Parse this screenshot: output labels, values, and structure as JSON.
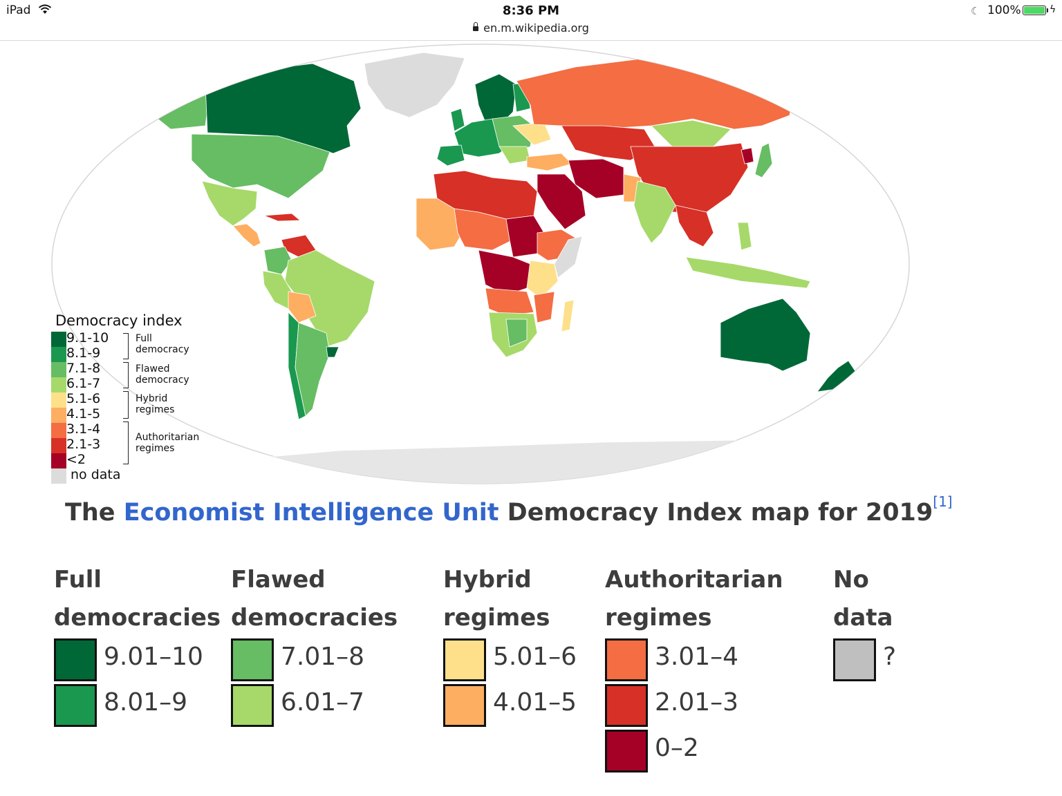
{
  "status_bar": {
    "device": "iPad",
    "time": "8:36 PM",
    "url": "en.m.wikipedia.org",
    "battery": "100%",
    "icons": [
      "wifi-icon",
      "lock-icon",
      "moon-icon",
      "battery-icon",
      "charging-bolt-icon"
    ]
  },
  "map": {
    "legend_title": "Democracy index",
    "legend_rows": [
      {
        "label": "9.1-10",
        "color": "#006837"
      },
      {
        "label": "8.1-9",
        "color": "#1a9850"
      },
      {
        "label": "7.1-8",
        "color": "#66bd63"
      },
      {
        "label": "6.1-7",
        "color": "#a6d96a"
      },
      {
        "label": "5.1-6",
        "color": "#fee08b"
      },
      {
        "label": "4.1-5",
        "color": "#fdae61"
      },
      {
        "label": "3.1-4",
        "color": "#f46d43"
      },
      {
        "label": "2.1-3",
        "color": "#d73027"
      },
      {
        "label": "<2",
        "color": "#a50026"
      },
      {
        "label": "no data",
        "color": "#dcdcdc"
      }
    ],
    "legend_groups": [
      "Full\ndemocracy",
      "Flawed\ndemocracy",
      "Hybrid\nregimes",
      "Authoritarian\nregimes"
    ]
  },
  "caption": {
    "prefix": "The ",
    "link": "Economist Intelligence Unit",
    "suffix": " Democracy Index map for 2019",
    "ref": "[1]"
  },
  "categories": [
    {
      "title": "Full\ndemocracies",
      "items": [
        {
          "range": "9.01–10",
          "color": "#006837"
        },
        {
          "range": "8.01–9",
          "color": "#1a9850"
        }
      ]
    },
    {
      "title": "Flawed\ndemocracies",
      "items": [
        {
          "range": "7.01–8",
          "color": "#66bd63"
        },
        {
          "range": "6.01–7",
          "color": "#a6d96a"
        }
      ]
    },
    {
      "title": "Hybrid\nregimes",
      "items": [
        {
          "range": "5.01–6",
          "color": "#fee08b"
        },
        {
          "range": "4.01–5",
          "color": "#fdae61"
        }
      ]
    },
    {
      "title": "Authoritarian\nregimes",
      "items": [
        {
          "range": "3.01–4",
          "color": "#f46d43"
        },
        {
          "range": "2.01–3",
          "color": "#d73027"
        },
        {
          "range": "0–2",
          "color": "#a50026"
        }
      ]
    },
    {
      "title": "No\ndata",
      "items": [
        {
          "range": "?",
          "color": "#bfbfbf"
        }
      ]
    }
  ]
}
